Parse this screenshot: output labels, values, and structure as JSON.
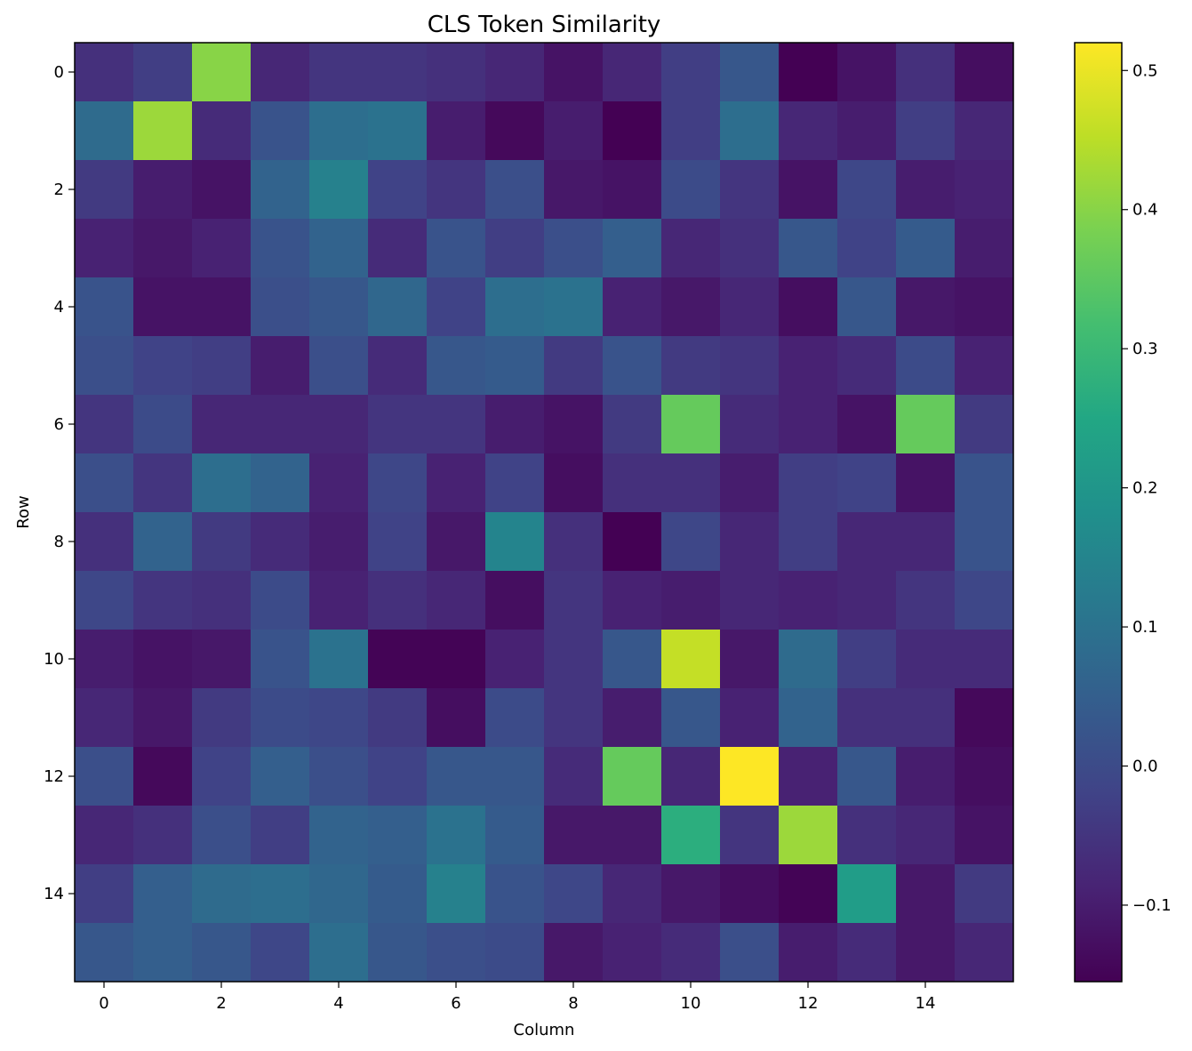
{
  "chart_data": {
    "type": "heatmap",
    "title": "CLS Token Similarity",
    "xlabel": "Column",
    "ylabel": "Row",
    "x_ticks": [
      0,
      2,
      4,
      6,
      8,
      10,
      12,
      14
    ],
    "y_ticks": [
      0,
      2,
      4,
      6,
      8,
      10,
      12,
      14
    ],
    "colormap": "viridis",
    "vmin": -0.155,
    "vmax": 0.52,
    "colorbar_ticks": [
      -0.1,
      0.0,
      0.1,
      0.2,
      0.3,
      0.4,
      0.5
    ],
    "colorbar_tick_labels": [
      "−0.1",
      "0.0",
      "0.1",
      "0.2",
      "0.3",
      "0.4",
      "0.5"
    ],
    "values": [
      [
        -0.06,
        -0.03,
        0.4,
        -0.08,
        -0.05,
        -0.05,
        -0.06,
        -0.08,
        -0.12,
        -0.08,
        -0.03,
        0.03,
        -0.155,
        -0.12,
        -0.06,
        -0.13
      ],
      [
        0.08,
        0.42,
        -0.07,
        0.02,
        0.09,
        0.1,
        -0.1,
        -0.14,
        -0.1,
        -0.155,
        -0.03,
        0.09,
        -0.08,
        -0.1,
        -0.03,
        -0.08
      ],
      [
        -0.04,
        -0.1,
        -0.12,
        0.06,
        0.14,
        -0.02,
        -0.05,
        0.01,
        -0.11,
        -0.12,
        0.0,
        -0.05,
        -0.12,
        -0.01,
        -0.1,
        -0.09
      ],
      [
        -0.09,
        -0.11,
        -0.09,
        0.02,
        0.06,
        -0.07,
        0.02,
        -0.03,
        0.01,
        0.05,
        -0.08,
        -0.06,
        0.03,
        -0.02,
        0.04,
        -0.1
      ],
      [
        0.02,
        -0.12,
        -0.12,
        0.01,
        0.03,
        0.07,
        -0.02,
        0.09,
        0.1,
        -0.09,
        -0.11,
        -0.08,
        -0.13,
        0.03,
        -0.11,
        -0.12
      ],
      [
        0.01,
        -0.02,
        -0.03,
        -0.1,
        0.01,
        -0.07,
        0.03,
        0.04,
        -0.04,
        0.02,
        -0.04,
        -0.05,
        -0.09,
        -0.07,
        0.0,
        -0.09
      ],
      [
        -0.05,
        0.0,
        -0.08,
        -0.08,
        -0.08,
        -0.05,
        -0.05,
        -0.1,
        -0.12,
        -0.04,
        0.36,
        -0.07,
        -0.09,
        -0.12,
        0.36,
        -0.04
      ],
      [
        0.01,
        -0.05,
        0.09,
        0.06,
        -0.09,
        -0.01,
        -0.09,
        -0.02,
        -0.13,
        -0.06,
        -0.06,
        -0.1,
        -0.03,
        -0.02,
        -0.12,
        0.02
      ],
      [
        -0.06,
        0.06,
        -0.04,
        -0.07,
        -0.1,
        -0.02,
        -0.11,
        0.15,
        -0.06,
        -0.155,
        -0.01,
        -0.08,
        -0.03,
        -0.08,
        -0.08,
        0.02
      ],
      [
        -0.01,
        -0.05,
        -0.06,
        0.0,
        -0.09,
        -0.06,
        -0.08,
        -0.13,
        -0.05,
        -0.09,
        -0.1,
        -0.08,
        -0.09,
        -0.08,
        -0.05,
        -0.01
      ],
      [
        -0.1,
        -0.12,
        -0.11,
        0.02,
        0.1,
        -0.15,
        -0.15,
        -0.09,
        -0.05,
        0.03,
        0.46,
        -0.11,
        0.08,
        -0.03,
        -0.07,
        -0.07
      ],
      [
        -0.08,
        -0.11,
        -0.04,
        0.0,
        -0.01,
        -0.04,
        -0.13,
        0.0,
        -0.05,
        -0.1,
        0.03,
        -0.09,
        0.06,
        -0.06,
        -0.06,
        -0.14
      ],
      [
        0.01,
        -0.14,
        -0.02,
        0.05,
        0.01,
        -0.02,
        0.03,
        0.03,
        -0.07,
        0.36,
        -0.08,
        0.52,
        -0.09,
        0.03,
        -0.1,
        -0.13
      ],
      [
        -0.08,
        -0.06,
        0.01,
        -0.03,
        0.06,
        0.05,
        0.1,
        0.04,
        -0.11,
        -0.11,
        0.27,
        -0.05,
        0.42,
        -0.06,
        -0.08,
        -0.12
      ],
      [
        -0.03,
        0.05,
        0.08,
        0.09,
        0.07,
        0.04,
        0.14,
        0.02,
        -0.01,
        -0.08,
        -0.11,
        -0.13,
        -0.15,
        0.22,
        -0.11,
        -0.04
      ],
      [
        0.03,
        0.05,
        0.03,
        -0.01,
        0.09,
        0.03,
        0.01,
        0.0,
        -0.11,
        -0.09,
        -0.07,
        0.01,
        -0.1,
        -0.07,
        -0.11,
        -0.08
      ]
    ]
  }
}
